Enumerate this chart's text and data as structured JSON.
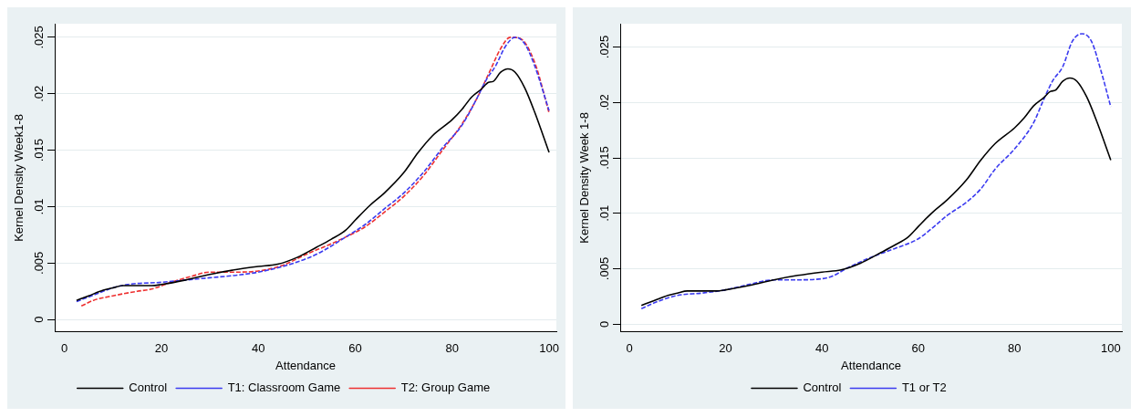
{
  "chart_data": [
    {
      "type": "line",
      "xlabel": "Attendance",
      "ylabel": "Kernel Density Week1-8",
      "xlim": [
        -2,
        101.5
      ],
      "ylim": [
        -0.0011,
        0.0262
      ],
      "xticks": [
        0,
        20,
        40,
        60,
        80,
        100
      ],
      "yticks": [
        {
          "value": 0,
          "label": "0"
        },
        {
          "value": 0.005,
          "label": ".005"
        },
        {
          "value": 0.01,
          "label": ".01"
        },
        {
          "value": 0.015,
          "label": ".015"
        },
        {
          "value": 0.02,
          "label": ".02"
        },
        {
          "value": 0.025,
          "label": ".025"
        }
      ],
      "grid": "y",
      "legend": "bottom",
      "series": [
        {
          "name": "Control",
          "color": "#000000",
          "line_style": "solid",
          "x": [
            2.5,
            5,
            8,
            10,
            12,
            15,
            18,
            20,
            25,
            30,
            35,
            40,
            44,
            48,
            52,
            55,
            58,
            60,
            63,
            66,
            70,
            73,
            76,
            80,
            82,
            84,
            86,
            87.5,
            88.5,
            90,
            91.5,
            93,
            95,
            97,
            100
          ],
          "values": [
            0.0017,
            0.0021,
            0.0026,
            0.0028,
            0.003,
            0.003,
            0.003,
            0.0031,
            0.0035,
            0.004,
            0.0044,
            0.0047,
            0.0049,
            0.0055,
            0.0064,
            0.0071,
            0.0079,
            0.0088,
            0.0101,
            0.0112,
            0.013,
            0.0148,
            0.0163,
            0.0177,
            0.0186,
            0.0197,
            0.0204,
            0.021,
            0.0211,
            0.0219,
            0.0222,
            0.0219,
            0.0205,
            0.0184,
            0.0148
          ]
        },
        {
          "name": "T1: Classroom Game",
          "color": "#3b3bf0",
          "line_style": "dashed",
          "x": [
            2.5,
            5,
            10,
            13,
            20,
            25,
            30,
            35,
            40,
            45,
            50,
            53,
            58,
            62,
            66,
            70,
            74,
            78,
            82,
            85,
            87,
            89,
            91,
            93,
            95,
            97,
            100
          ],
          "values": [
            0.0016,
            0.002,
            0.0028,
            0.0031,
            0.0033,
            0.0035,
            0.0037,
            0.0039,
            0.0042,
            0.0047,
            0.0054,
            0.006,
            0.0073,
            0.0084,
            0.0098,
            0.0112,
            0.013,
            0.0152,
            0.0172,
            0.0195,
            0.0212,
            0.0225,
            0.0242,
            0.025,
            0.0244,
            0.0225,
            0.0185
          ]
        },
        {
          "name": "T2: Group Game",
          "color": "#ee3030",
          "line_style": "dashed",
          "x": [
            3.5,
            6,
            10,
            15,
            18,
            22,
            26,
            30,
            35,
            40,
            45,
            50,
            55,
            58,
            62,
            66,
            70,
            74,
            78,
            82,
            85,
            88,
            90,
            92,
            94,
            97,
            100
          ],
          "values": [
            0.0012,
            0.0017,
            0.0021,
            0.0025,
            0.0027,
            0.0033,
            0.0038,
            0.0042,
            0.0042,
            0.0043,
            0.0048,
            0.0058,
            0.0067,
            0.0073,
            0.0082,
            0.0095,
            0.0109,
            0.0127,
            0.015,
            0.0173,
            0.0195,
            0.0222,
            0.024,
            0.025,
            0.0249,
            0.0228,
            0.0183
          ]
        }
      ]
    },
    {
      "type": "line",
      "xlabel": "Attendance",
      "ylabel": "Kernel Density Week 1-8",
      "xlim": [
        -1.9,
        102.3
      ],
      "ylim": [
        -0.0007,
        0.0271
      ],
      "xticks": [
        0,
        20,
        40,
        60,
        80,
        100
      ],
      "yticks": [
        {
          "value": 0,
          "label": "0"
        },
        {
          "value": 0.005,
          "label": ".005"
        },
        {
          "value": 0.01,
          "label": ".01"
        },
        {
          "value": 0.015,
          "label": ".015"
        },
        {
          "value": 0.02,
          "label": ".02"
        },
        {
          "value": 0.025,
          "label": ".025"
        }
      ],
      "grid": "y",
      "legend": "bottom",
      "series": [
        {
          "name": "Control",
          "color": "#000000",
          "line_style": "solid",
          "x": [
            2.5,
            5,
            8,
            10,
            12,
            15,
            18,
            20,
            25,
            30,
            35,
            40,
            44,
            48,
            52,
            55,
            58,
            60,
            63,
            66,
            70,
            73,
            76,
            80,
            82,
            84,
            86,
            87.5,
            88.5,
            90,
            91.5,
            93,
            95,
            97,
            100
          ],
          "values": [
            0.0017,
            0.0021,
            0.0026,
            0.0028,
            0.003,
            0.003,
            0.003,
            0.0031,
            0.0035,
            0.004,
            0.0044,
            0.0047,
            0.0049,
            0.0055,
            0.0064,
            0.0071,
            0.0079,
            0.0088,
            0.0101,
            0.0112,
            0.013,
            0.0148,
            0.0163,
            0.0177,
            0.0186,
            0.0197,
            0.0204,
            0.021,
            0.0211,
            0.0219,
            0.0222,
            0.0219,
            0.0205,
            0.0184,
            0.0148
          ]
        },
        {
          "name": "T1 or T2",
          "color": "#3b3bf0",
          "line_style": "dashed",
          "x": [
            2.5,
            5,
            10,
            15,
            20,
            25,
            30,
            35,
            40,
            42,
            45,
            50,
            55,
            60,
            63,
            66,
            70,
            73,
            76,
            80,
            84,
            86,
            88,
            90,
            92,
            94,
            96,
            98,
            100
          ],
          "values": [
            0.0014,
            0.0019,
            0.0026,
            0.0028,
            0.0031,
            0.0036,
            0.004,
            0.004,
            0.0041,
            0.0043,
            0.005,
            0.006,
            0.0068,
            0.0077,
            0.0087,
            0.0098,
            0.011,
            0.0122,
            0.014,
            0.0158,
            0.0182,
            0.0202,
            0.022,
            0.0232,
            0.0255,
            0.0262,
            0.0255,
            0.0228,
            0.0196
          ]
        }
      ]
    }
  ]
}
